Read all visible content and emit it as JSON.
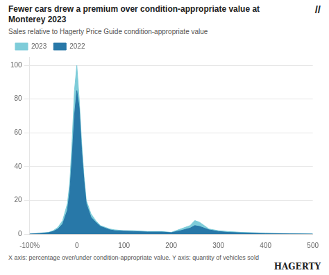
{
  "chart_data": {
    "type": "area",
    "title": [
      "Fewer cars drew a premium over condition-appropriate value at",
      "Monterey 2023"
    ],
    "subtitle": "Sales relative to Hagerty Price Guide condition-appropriate value",
    "caption": "X axis: percentage over/under condition-appropriate value. Y axis: quantity of vehicles sold",
    "annotations": [
      "//",
      "HAGERTY"
    ],
    "x": [
      -100,
      -80,
      -60,
      -50,
      -40,
      -30,
      -20,
      -15,
      -10,
      -5,
      0,
      5,
      10,
      15,
      20,
      30,
      40,
      50,
      60,
      70,
      80,
      100,
      120,
      150,
      180,
      200,
      220,
      240,
      250,
      260,
      270,
      280,
      300,
      320,
      350,
      400,
      450,
      500
    ],
    "series": [
      {
        "name": "2023",
        "color": "#7eccd9",
        "values": [
          0,
          0.5,
          1,
          2,
          4,
          8,
          18,
          30,
          55,
          85,
          100,
          80,
          55,
          35,
          20,
          12,
          8,
          5,
          4,
          3,
          2.5,
          2,
          2,
          1.5,
          1.5,
          1,
          3,
          5,
          8,
          7,
          5,
          3,
          2,
          1.5,
          1,
          0.5,
          0.2,
          0
        ]
      },
      {
        "name": "2022",
        "color": "#2878a8",
        "values": [
          0,
          0.3,
          0.8,
          1.5,
          3,
          6,
          14,
          25,
          45,
          70,
          85,
          75,
          50,
          32,
          18,
          10,
          7,
          4.5,
          3.5,
          2.5,
          2,
          1.8,
          1.5,
          1.2,
          1.2,
          0.8,
          2,
          3.5,
          5,
          4.5,
          3.5,
          2.5,
          1.5,
          1,
          0.7,
          0.3,
          0.1,
          0
        ]
      }
    ],
    "xlim": [
      -100,
      500
    ],
    "xticks": [
      {
        "value": -100,
        "label": "-100%"
      },
      0,
      100,
      200,
      300,
      400,
      500
    ],
    "ylim": [
      0,
      105
    ],
    "yticks": [
      0,
      20,
      40,
      60,
      80,
      100
    ],
    "grid": true,
    "legend": "top left"
  }
}
